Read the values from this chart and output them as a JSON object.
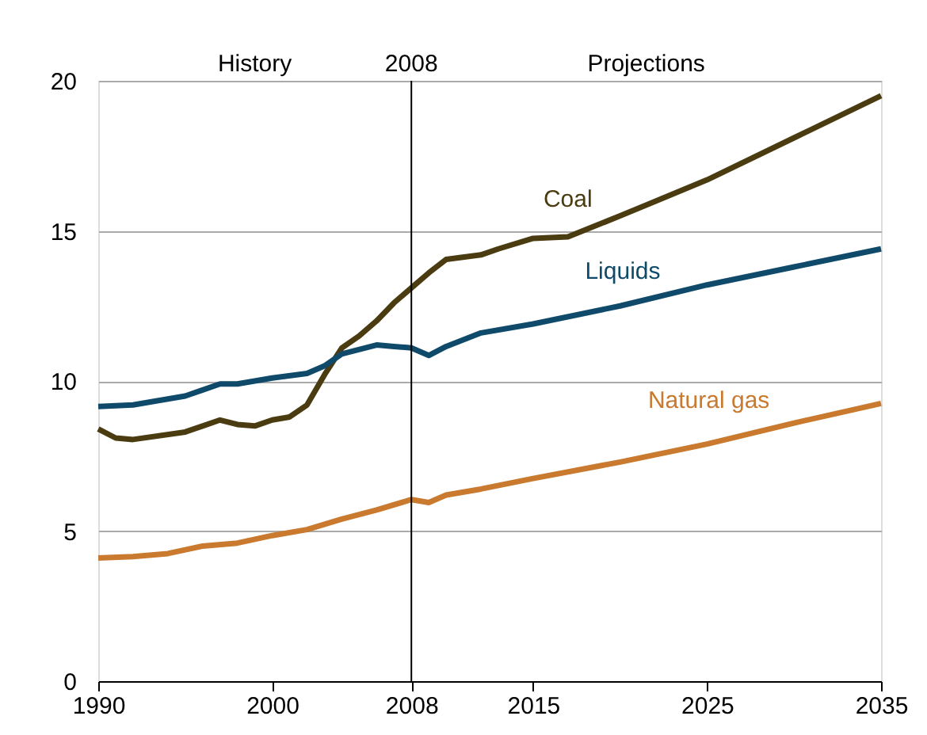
{
  "chart_data": {
    "type": "line",
    "xlim": [
      1990,
      2035
    ],
    "xticks": [
      1990,
      2000,
      2008,
      2015,
      2025,
      2035
    ],
    "ylim": [
      0,
      20
    ],
    "yticks": [
      0,
      5,
      10,
      15,
      20
    ],
    "grid": "y",
    "series": [
      {
        "name": "Coal",
        "color": "#4a3c10",
        "x": [
          1990,
          1991,
          1992,
          1995,
          1997,
          1998,
          1999,
          2000,
          2001,
          2002,
          2003,
          2004,
          2005,
          2006,
          2007,
          2008,
          2009,
          2010,
          2012,
          2013,
          2015,
          2017,
          2020,
          2025,
          2030,
          2035
        ],
        "values": [
          8.4,
          8.1,
          8.05,
          8.3,
          8.7,
          8.55,
          8.5,
          8.7,
          8.8,
          9.2,
          10.2,
          11.1,
          11.5,
          12.0,
          12.6,
          13.1,
          13.6,
          14.05,
          14.2,
          14.4,
          14.75,
          14.8,
          15.5,
          16.7,
          18.1,
          19.5
        ]
      },
      {
        "name": "Liquids",
        "color": "#0f4a6a",
        "x": [
          1990,
          1992,
          1995,
          1997,
          1998,
          2000,
          2002,
          2003,
          2004,
          2006,
          2007,
          2008,
          2009,
          2010,
          2012,
          2015,
          2020,
          2025,
          2030,
          2035
        ],
        "values": [
          9.15,
          9.2,
          9.5,
          9.9,
          9.9,
          10.1,
          10.25,
          10.5,
          10.9,
          11.2,
          11.15,
          11.1,
          10.85,
          11.15,
          11.6,
          11.9,
          12.5,
          13.2,
          13.8,
          14.4
        ]
      },
      {
        "name": "Natural gas",
        "color": "#c97a2e",
        "x": [
          1990,
          1992,
          1994,
          1996,
          1998,
          2000,
          2002,
          2004,
          2006,
          2008,
          2009,
          2010,
          2012,
          2015,
          2020,
          2025,
          2030,
          2035
        ],
        "values": [
          4.1,
          4.15,
          4.25,
          4.5,
          4.6,
          4.85,
          5.05,
          5.4,
          5.7,
          6.05,
          5.95,
          6.2,
          6.4,
          6.75,
          7.3,
          7.9,
          8.6,
          9.25
        ]
      }
    ],
    "ref_lines": [
      {
        "axis": "x",
        "value": 2008,
        "label": "2008",
        "color": "#000000"
      }
    ],
    "annotations": [
      "History",
      "Projections"
    ]
  }
}
